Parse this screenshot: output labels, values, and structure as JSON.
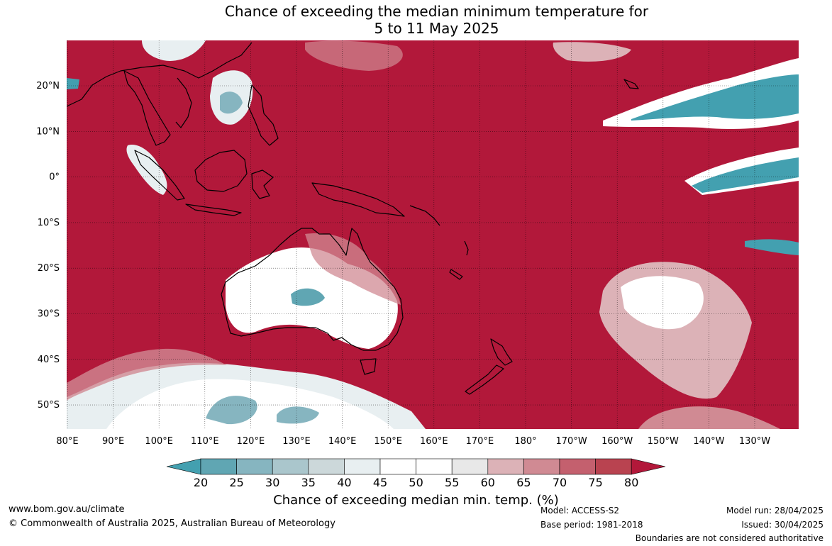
{
  "title": {
    "line1": "Chance of exceeding the median minimum temperature for",
    "line2": "5 to 11 May 2025"
  },
  "map": {
    "lon_labels": [
      "80°E",
      "90°E",
      "100°E",
      "110°E",
      "120°E",
      "130°E",
      "140°E",
      "150°E",
      "160°E",
      "170°E",
      "180°",
      "170°W",
      "160°W",
      "150°W",
      "140°W",
      "130°W"
    ],
    "lat_labels": [
      "20°N",
      "10°N",
      "0°",
      "10°S",
      "20°S",
      "30°S",
      "40°S",
      "50°S"
    ],
    "colors": {
      "high": "#b2183a",
      "low": "#43a0b0",
      "land_outline": "#000000"
    }
  },
  "colorbar": {
    "ticks": [
      "20",
      "25",
      "30",
      "35",
      "40",
      "45",
      "50",
      "55",
      "60",
      "65",
      "70",
      "75",
      "80"
    ],
    "bins": [
      "#60a6b3",
      "#86b5c0",
      "#aac6cc",
      "#ccd8da",
      "#e8eff1",
      "#ffffff",
      "#ffffff",
      "#e8e8e8",
      "#dcb2b7",
      "#d08a93",
      "#c4606e",
      "#b94350"
    ],
    "under_color": "#43a0b0",
    "over_color": "#b2183a",
    "label": "Chance of exceeding median min. temp. (%)"
  },
  "footer": {
    "website": "www.bom.gov.au/climate",
    "copyright": "© Commonwealth of Australia 2025, Australian Bureau of Meteorology",
    "model": "Model: ACCESS-S2",
    "base_period": "Base period: 1981-2018",
    "model_run": "Model run: 28/04/2025",
    "issued": "Issued: 30/04/2025",
    "disclaimer": "Boundaries are not considered authoritative"
  }
}
